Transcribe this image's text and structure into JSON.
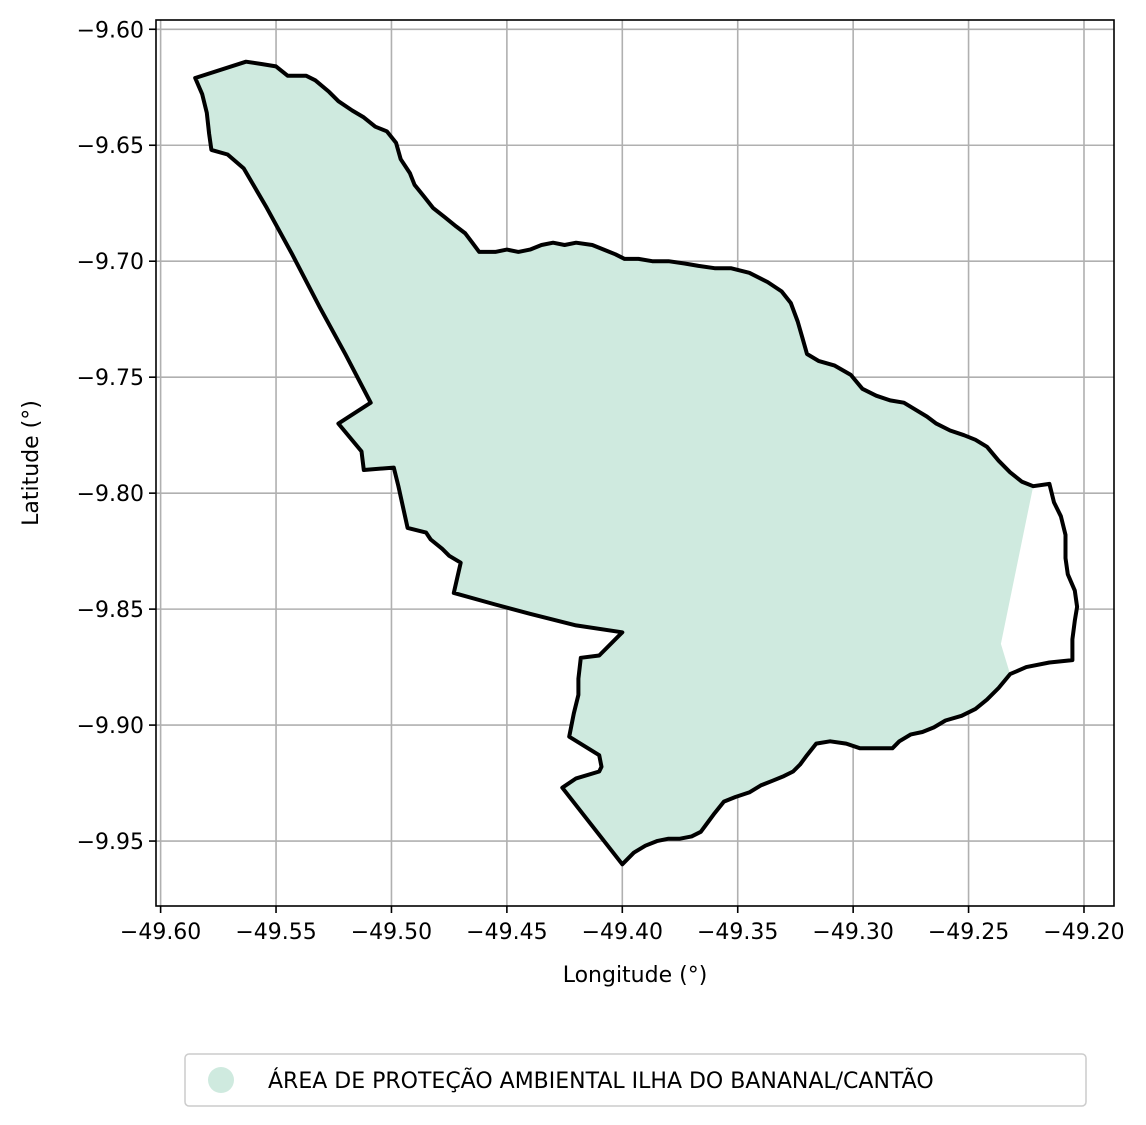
{
  "chart_data": {
    "type": "map",
    "xlabel": "Longitude (°)",
    "ylabel": "Latitude (°)",
    "xlim": [
      -49.602,
      -49.187
    ],
    "ylim": [
      -9.978,
      -9.596
    ],
    "grid": true,
    "xticks": [
      -49.6,
      -49.55,
      -49.5,
      -49.45,
      -49.4,
      -49.35,
      -49.3,
      -49.25,
      -49.2
    ],
    "xtick_labels": [
      "−49.60",
      "−49.55",
      "−49.50",
      "−49.45",
      "−49.40",
      "−49.35",
      "−49.30",
      "−49.25",
      "−49.20"
    ],
    "yticks": [
      -9.6,
      -9.65,
      -9.7,
      -9.75,
      -9.8,
      -9.85,
      -9.9,
      -9.95
    ],
    "ytick_labels": [
      "−9.60",
      "−9.65",
      "−9.70",
      "−9.75",
      "−9.80",
      "−9.85",
      "−9.90",
      "−9.95"
    ],
    "legend": {
      "placement": "bottom-center",
      "entries": [
        {
          "label": "ÁREA DE PROTEÇÃO AMBIENTAL ILHA DO BANANAL/CANTÃO",
          "color": "#cfeadf"
        }
      ]
    },
    "fill_color": "#cfeadf",
    "outline_color": "#000000",
    "boundary": [
      [
        -49.585,
        -9.621
      ],
      [
        -49.563,
        -9.614
      ],
      [
        -49.556,
        -9.615
      ],
      [
        -49.55,
        -9.616
      ],
      [
        -49.545,
        -9.62
      ],
      [
        -49.537,
        -9.62
      ],
      [
        -49.533,
        -9.622
      ],
      [
        -49.527,
        -9.627
      ],
      [
        -49.523,
        -9.631
      ],
      [
        -49.517,
        -9.635
      ],
      [
        -49.512,
        -9.638
      ],
      [
        -49.507,
        -9.642
      ],
      [
        -49.502,
        -9.644
      ],
      [
        -49.498,
        -9.649
      ],
      [
        -49.496,
        -9.656
      ],
      [
        -49.492,
        -9.662
      ],
      [
        -49.49,
        -9.667
      ],
      [
        -49.486,
        -9.672
      ],
      [
        -49.482,
        -9.677
      ],
      [
        -49.477,
        -9.681
      ],
      [
        -49.472,
        -9.685
      ],
      [
        -49.468,
        -9.688
      ],
      [
        -49.465,
        -9.692
      ],
      [
        -49.462,
        -9.696
      ],
      [
        -49.455,
        -9.696
      ],
      [
        -49.45,
        -9.695
      ],
      [
        -49.445,
        -9.696
      ],
      [
        -49.44,
        -9.695
      ],
      [
        -49.435,
        -9.693
      ],
      [
        -49.43,
        -9.692
      ],
      [
        -49.425,
        -9.693
      ],
      [
        -49.42,
        -9.692
      ],
      [
        -49.413,
        -9.693
      ],
      [
        -49.408,
        -9.695
      ],
      [
        -49.403,
        -9.697
      ],
      [
        -49.399,
        -9.699
      ],
      [
        -49.393,
        -9.699
      ],
      [
        -49.387,
        -9.7
      ],
      [
        -49.38,
        -9.7
      ],
      [
        -49.373,
        -9.701
      ],
      [
        -49.367,
        -9.702
      ],
      [
        -49.36,
        -9.703
      ],
      [
        -49.353,
        -9.703
      ],
      [
        -49.345,
        -9.705
      ],
      [
        -49.337,
        -9.709
      ],
      [
        -49.331,
        -9.713
      ],
      [
        -49.327,
        -9.718
      ],
      [
        -49.324,
        -9.726
      ],
      [
        -49.322,
        -9.733
      ],
      [
        -49.32,
        -9.74
      ],
      [
        -49.315,
        -9.743
      ],
      [
        -49.308,
        -9.745
      ],
      [
        -49.301,
        -9.749
      ],
      [
        -49.296,
        -9.755
      ],
      [
        -49.29,
        -9.758
      ],
      [
        -49.284,
        -9.76
      ],
      [
        -49.278,
        -9.761
      ],
      [
        -49.273,
        -9.764
      ],
      [
        -49.268,
        -9.767
      ],
      [
        -49.264,
        -9.77
      ],
      [
        -49.258,
        -9.773
      ],
      [
        -49.252,
        -9.775
      ],
      [
        -49.247,
        -9.777
      ],
      [
        -49.242,
        -9.78
      ],
      [
        -49.237,
        -9.786
      ],
      [
        -49.232,
        -9.791
      ],
      [
        -49.227,
        -9.795
      ],
      [
        -49.222,
        -9.797
      ],
      [
        -49.215,
        -9.796
      ],
      [
        -49.213,
        -9.804
      ],
      [
        -49.21,
        -9.81
      ],
      [
        -49.208,
        -9.818
      ],
      [
        -49.208,
        -9.828
      ],
      [
        -49.207,
        -9.835
      ],
      [
        -49.204,
        -9.842
      ],
      [
        -49.203,
        -9.849
      ],
      [
        -49.204,
        -9.855
      ],
      [
        -49.205,
        -9.863
      ],
      [
        -49.205,
        -9.872
      ],
      [
        -49.215,
        -9.873
      ],
      [
        -49.225,
        -9.875
      ],
      [
        -49.232,
        -9.878
      ],
      [
        -49.237,
        -9.884
      ],
      [
        -49.242,
        -9.889
      ],
      [
        -49.247,
        -9.893
      ],
      [
        -49.253,
        -9.896
      ],
      [
        -49.26,
        -9.898
      ],
      [
        -49.265,
        -9.901
      ],
      [
        -49.27,
        -9.903
      ],
      [
        -49.275,
        -9.904
      ],
      [
        -49.28,
        -9.907
      ],
      [
        -49.283,
        -9.91
      ],
      [
        -49.29,
        -9.91
      ],
      [
        -49.297,
        -9.91
      ],
      [
        -49.303,
        -9.908
      ],
      [
        -49.31,
        -9.907
      ],
      [
        -49.316,
        -9.908
      ],
      [
        -49.32,
        -9.913
      ],
      [
        -49.323,
        -9.917
      ],
      [
        -49.326,
        -9.92
      ],
      [
        -49.33,
        -9.922
      ],
      [
        -49.335,
        -9.924
      ],
      [
        -49.34,
        -9.926
      ],
      [
        -49.345,
        -9.929
      ],
      [
        -49.351,
        -9.931
      ],
      [
        -49.356,
        -9.933
      ],
      [
        -49.36,
        -9.938
      ],
      [
        -49.363,
        -9.942
      ],
      [
        -49.366,
        -9.946
      ],
      [
        -49.37,
        -9.948
      ],
      [
        -49.375,
        -9.949
      ],
      [
        -49.38,
        -9.949
      ],
      [
        -49.385,
        -9.95
      ],
      [
        -49.39,
        -9.952
      ],
      [
        -49.395,
        -9.955
      ],
      [
        -49.4,
        -9.96
      ],
      [
        -49.426,
        -9.927
      ],
      [
        -49.42,
        -9.923
      ],
      [
        -49.41,
        -9.92
      ],
      [
        -49.409,
        -9.918
      ],
      [
        -49.41,
        -9.913
      ],
      [
        -49.423,
        -9.905
      ],
      [
        -49.421,
        -9.895
      ],
      [
        -49.419,
        -9.887
      ],
      [
        -49.419,
        -9.88
      ],
      [
        -49.418,
        -9.871
      ],
      [
        -49.41,
        -9.87
      ],
      [
        -49.4,
        -9.86
      ],
      [
        -49.42,
        -9.857
      ],
      [
        -49.44,
        -9.852
      ],
      [
        -49.455,
        -9.848
      ],
      [
        -49.473,
        -9.843
      ],
      [
        -49.47,
        -9.83
      ],
      [
        -49.475,
        -9.827
      ],
      [
        -49.478,
        -9.824
      ],
      [
        -49.483,
        -9.82
      ],
      [
        -49.485,
        -9.817
      ],
      [
        -49.493,
        -9.815
      ],
      [
        -49.495,
        -9.806
      ],
      [
        -49.497,
        -9.797
      ],
      [
        -49.499,
        -9.789
      ],
      [
        -49.512,
        -9.79
      ],
      [
        -49.513,
        -9.782
      ],
      [
        -49.523,
        -9.77
      ],
      [
        -49.509,
        -9.761
      ],
      [
        -49.52,
        -9.74
      ],
      [
        -49.531,
        -9.72
      ],
      [
        -49.543,
        -9.697
      ],
      [
        -49.554,
        -9.677
      ],
      [
        -49.564,
        -9.66
      ],
      [
        -49.571,
        -9.654
      ],
      [
        -49.578,
        -9.652
      ],
      [
        -49.579,
        -9.645
      ],
      [
        -49.58,
        -9.636
      ],
      [
        -49.582,
        -9.628
      ]
    ],
    "unfilled_notch": [
      [
        -49.222,
        -9.797
      ],
      [
        -49.236,
        -9.865
      ],
      [
        -49.232,
        -9.878
      ],
      [
        -49.205,
        -9.872
      ],
      [
        -49.205,
        -9.863
      ],
      [
        -49.204,
        -9.855
      ],
      [
        -49.203,
        -9.849
      ],
      [
        -49.204,
        -9.842
      ],
      [
        -49.207,
        -9.835
      ],
      [
        -49.208,
        -9.828
      ],
      [
        -49.208,
        -9.818
      ],
      [
        -49.21,
        -9.81
      ],
      [
        -49.213,
        -9.804
      ],
      [
        -49.215,
        -9.796
      ]
    ]
  }
}
